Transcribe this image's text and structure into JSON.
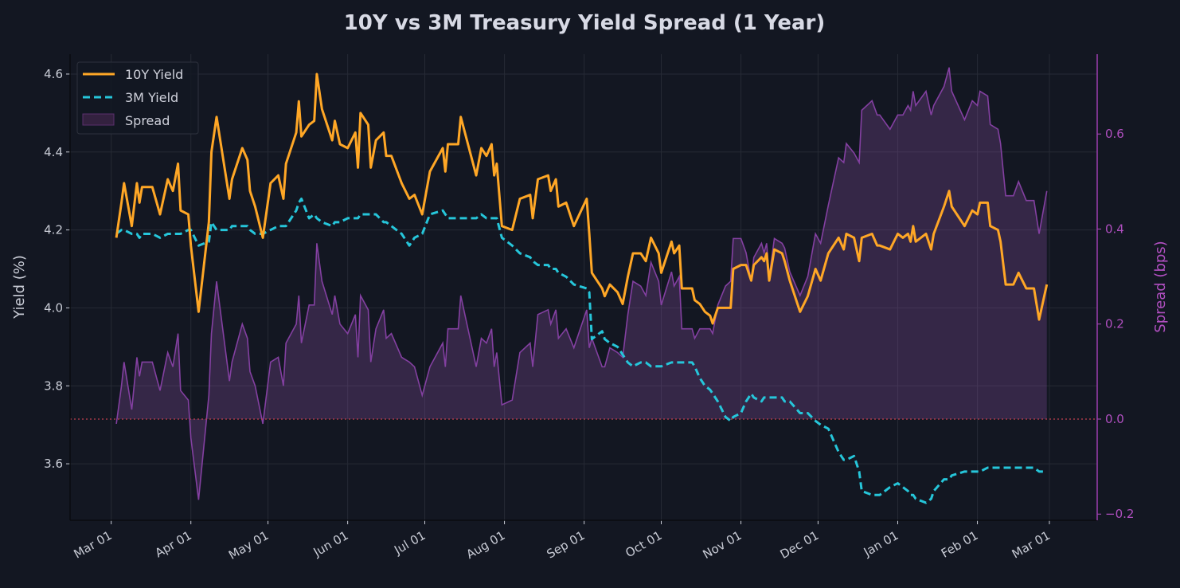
{
  "chart_data": {
    "type": "line",
    "title": "10Y vs 3M Treasury Yield Spread (1 Year)",
    "ylabel": "Yield (%)",
    "ylabel_right": "Spread (bps)",
    "ylim": [
      3.455,
      4.651
    ],
    "ylim_right": [
      -0.213,
      0.768
    ],
    "yticks": [
      "3.6",
      "3.8",
      "4.0",
      "4.2",
      "4.4",
      "4.6"
    ],
    "yticks_right": [
      "−0.2",
      "0.0",
      "0.2",
      "0.4",
      "0.6"
    ],
    "xticks": [
      "Mar 01",
      "Apr 01",
      "May 01",
      "Jun 01",
      "Jul 01",
      "Aug 01",
      "Sep 01",
      "Oct 01",
      "Nov 01",
      "Dec 01",
      "Jan 01",
      "Feb 01",
      "Mar 01"
    ],
    "grid": true,
    "legend_position": "top-left",
    "reference_line": {
      "axis": "right",
      "value": 0.0,
      "style": "dotted",
      "color": "#c0404f"
    },
    "colors": {
      "ten_year": "#ffa726",
      "three_month": "#26c6da",
      "spread": "#9b59b6",
      "background": "#131722"
    },
    "dates": [
      "Mar 03",
      "Mar 05",
      "Mar 06",
      "Mar 09",
      "Mar 11",
      "Mar 12",
      "Mar 13",
      "Mar 17",
      "Mar 20",
      "Mar 23",
      "Mar 25",
      "Mar 27",
      "Mar 28",
      "Mar 31",
      "Apr 01",
      "Apr 04",
      "Apr 08",
      "Apr 09",
      "Apr 11",
      "Apr 16",
      "Apr 17",
      "Apr 21",
      "Apr 23",
      "Apr 24",
      "Apr 26",
      "Apr 29",
      "May 02",
      "May 05",
      "May 07",
      "May 08",
      "May 12",
      "May 13",
      "May 14",
      "May 17",
      "May 19",
      "May 20",
      "May 22",
      "May 26",
      "May 27",
      "May 29",
      "Jun 01",
      "Jun 04",
      "Jun 05",
      "Jun 06",
      "Jun 09",
      "Jun 10",
      "Jun 12",
      "Jun 15",
      "Jun 16",
      "Jun 18",
      "Jun 22",
      "Jun 25",
      "Jun 27",
      "Jun 30",
      "Jul 03",
      "Jul 08",
      "Jul 09",
      "Jul 10",
      "Jul 14",
      "Jul 15",
      "Jul 17",
      "Jul 21",
      "Jul 23",
      "Jul 25",
      "Jul 27",
      "Jul 28",
      "Jul 29",
      "Jul 31",
      "Aug 04",
      "Aug 07",
      "Aug 11",
      "Aug 12",
      "Aug 14",
      "Aug 18",
      "Aug 19",
      "Aug 21",
      "Aug 22",
      "Aug 25",
      "Aug 28",
      "Sep 02",
      "Sep 03",
      "Sep 04",
      "Sep 08",
      "Sep 09",
      "Sep 11",
      "Sep 14",
      "Sep 16",
      "Sep 18",
      "Sep 20",
      "Sep 23",
      "Sep 25",
      "Sep 27",
      "Sep 30",
      "Oct 01",
      "Oct 05",
      "Oct 06",
      "Oct 08",
      "Oct 09",
      "Oct 13",
      "Oct 14",
      "Oct 16",
      "Oct 18",
      "Oct 20",
      "Oct 21",
      "Oct 23",
      "Oct 26",
      "Oct 28",
      "Oct 29",
      "Nov 01",
      "Nov 03",
      "Nov 05",
      "Nov 06",
      "Nov 09",
      "Nov 10",
      "Nov 11",
      "Nov 12",
      "Nov 14",
      "Nov 17",
      "Nov 18",
      "Nov 20",
      "Nov 24",
      "Nov 27",
      "Nov 30",
      "Dec 02",
      "Dec 05",
      "Dec 09",
      "Dec 11",
      "Dec 12",
      "Dec 15",
      "Dec 16",
      "Dec 17",
      "Dec 18",
      "Dec 22",
      "Dec 24",
      "Dec 25",
      "Dec 29",
      "Jan 01",
      "Jan 03",
      "Jan 05",
      "Jan 06",
      "Jan 07",
      "Jan 08",
      "Jan 12",
      "Jan 14",
      "Jan 15",
      "Jan 19",
      "Jan 21",
      "Jan 22",
      "Jan 27",
      "Jan 30",
      "Feb 01",
      "Feb 02",
      "Feb 05",
      "Feb 06",
      "Feb 09",
      "Feb 10",
      "Feb 12",
      "Feb 15",
      "Feb 17",
      "Feb 20",
      "Feb 23",
      "Feb 25",
      "Feb 28"
    ],
    "series": [
      {
        "name": "10Y Yield",
        "axis": "left",
        "style": "solid",
        "values": [
          4.18,
          4.27,
          4.32,
          4.21,
          4.32,
          4.27,
          4.31,
          4.31,
          4.24,
          4.33,
          4.3,
          4.37,
          4.25,
          4.24,
          4.16,
          3.99,
          4.22,
          4.4,
          4.49,
          4.28,
          4.33,
          4.41,
          4.38,
          4.3,
          4.26,
          4.18,
          4.32,
          4.34,
          4.28,
          4.37,
          4.45,
          4.53,
          4.44,
          4.47,
          4.48,
          4.6,
          4.51,
          4.43,
          4.48,
          4.42,
          4.41,
          4.45,
          4.36,
          4.5,
          4.47,
          4.36,
          4.43,
          4.45,
          4.39,
          4.39,
          4.32,
          4.28,
          4.29,
          4.24,
          4.35,
          4.41,
          4.35,
          4.42,
          4.42,
          4.49,
          4.44,
          4.34,
          4.41,
          4.39,
          4.42,
          4.34,
          4.37,
          4.21,
          4.2,
          4.28,
          4.29,
          4.23,
          4.33,
          4.34,
          4.3,
          4.33,
          4.26,
          4.27,
          4.21,
          4.28,
          4.19,
          4.09,
          4.05,
          4.03,
          4.06,
          4.04,
          4.01,
          4.08,
          4.14,
          4.14,
          4.12,
          4.18,
          4.14,
          4.09,
          4.17,
          4.14,
          4.16,
          4.05,
          4.05,
          4.02,
          4.01,
          3.99,
          3.98,
          3.96,
          4.0,
          4.0,
          4.0,
          4.1,
          4.11,
          4.11,
          4.07,
          4.11,
          4.13,
          4.12,
          4.14,
          4.07,
          4.15,
          4.14,
          4.12,
          4.07,
          3.99,
          4.03,
          4.1,
          4.07,
          4.14,
          4.18,
          4.15,
          4.19,
          4.18,
          4.15,
          4.12,
          4.18,
          4.19,
          4.16,
          4.16,
          4.15,
          4.19,
          4.18,
          4.19,
          4.17,
          4.21,
          4.17,
          4.19,
          4.15,
          4.19,
          4.26,
          4.3,
          4.26,
          4.21,
          4.25,
          4.24,
          4.27,
          4.27,
          4.21,
          4.2,
          4.17,
          4.06,
          4.06,
          4.09,
          4.05,
          4.05,
          3.97,
          4.06
        ]
      },
      {
        "name": "3M Yield",
        "axis": "left",
        "style": "dashed",
        "values": [
          4.19,
          4.2,
          4.2,
          4.19,
          4.19,
          4.18,
          4.19,
          4.19,
          4.18,
          4.19,
          4.19,
          4.19,
          4.19,
          4.2,
          4.2,
          4.16,
          4.17,
          4.22,
          4.2,
          4.2,
          4.21,
          4.21,
          4.21,
          4.2,
          4.19,
          4.19,
          4.2,
          4.21,
          4.21,
          4.21,
          4.25,
          4.27,
          4.28,
          4.23,
          4.24,
          4.23,
          4.22,
          4.21,
          4.22,
          4.22,
          4.23,
          4.23,
          4.23,
          4.24,
          4.24,
          4.24,
          4.24,
          4.22,
          4.22,
          4.21,
          4.19,
          4.16,
          4.18,
          4.19,
          4.24,
          4.25,
          4.24,
          4.23,
          4.23,
          4.23,
          4.23,
          4.23,
          4.24,
          4.23,
          4.23,
          4.23,
          4.23,
          4.18,
          4.16,
          4.14,
          4.13,
          4.12,
          4.11,
          4.11,
          4.1,
          4.1,
          4.09,
          4.08,
          4.06,
          4.05,
          4.04,
          3.92,
          3.94,
          3.92,
          3.91,
          3.9,
          3.88,
          3.86,
          3.85,
          3.86,
          3.86,
          3.85,
          3.85,
          3.85,
          3.86,
          3.86,
          3.86,
          3.86,
          3.86,
          3.85,
          3.82,
          3.8,
          3.79,
          3.78,
          3.76,
          3.72,
          3.71,
          3.72,
          3.73,
          3.76,
          3.78,
          3.77,
          3.76,
          3.77,
          3.77,
          3.77,
          3.77,
          3.77,
          3.76,
          3.76,
          3.73,
          3.73,
          3.71,
          3.7,
          3.69,
          3.63,
          3.61,
          3.61,
          3.62,
          3.6,
          3.58,
          3.53,
          3.52,
          3.52,
          3.52,
          3.54,
          3.55,
          3.54,
          3.53,
          3.52,
          3.52,
          3.51,
          3.5,
          3.51,
          3.53,
          3.56,
          3.56,
          3.57,
          3.58,
          3.58,
          3.58,
          3.58,
          3.59,
          3.59,
          3.59,
          3.59,
          3.59,
          3.59,
          3.59,
          3.59,
          3.59,
          3.58,
          3.58
        ]
      },
      {
        "name": "Spread",
        "axis": "right",
        "style": "area",
        "values": [
          -0.01,
          0.07,
          0.12,
          0.02,
          0.13,
          0.09,
          0.12,
          0.12,
          0.06,
          0.14,
          0.11,
          0.18,
          0.06,
          0.04,
          -0.04,
          -0.17,
          0.05,
          0.18,
          0.29,
          0.08,
          0.12,
          0.2,
          0.17,
          0.1,
          0.07,
          -0.01,
          0.12,
          0.13,
          0.07,
          0.16,
          0.2,
          0.26,
          0.16,
          0.24,
          0.24,
          0.37,
          0.29,
          0.22,
          0.26,
          0.2,
          0.18,
          0.22,
          0.13,
          0.26,
          0.23,
          0.12,
          0.19,
          0.23,
          0.17,
          0.18,
          0.13,
          0.12,
          0.11,
          0.05,
          0.11,
          0.16,
          0.11,
          0.19,
          0.19,
          0.26,
          0.21,
          0.11,
          0.17,
          0.16,
          0.19,
          0.11,
          0.14,
          0.03,
          0.04,
          0.14,
          0.16,
          0.11,
          0.22,
          0.23,
          0.2,
          0.23,
          0.17,
          0.19,
          0.15,
          0.23,
          0.15,
          0.17,
          0.11,
          0.11,
          0.15,
          0.14,
          0.13,
          0.22,
          0.29,
          0.28,
          0.26,
          0.33,
          0.29,
          0.24,
          0.31,
          0.28,
          0.3,
          0.19,
          0.19,
          0.17,
          0.19,
          0.19,
          0.19,
          0.18,
          0.24,
          0.28,
          0.29,
          0.38,
          0.38,
          0.35,
          0.29,
          0.34,
          0.37,
          0.35,
          0.37,
          0.3,
          0.38,
          0.37,
          0.36,
          0.31,
          0.26,
          0.3,
          0.39,
          0.37,
          0.45,
          0.55,
          0.54,
          0.58,
          0.56,
          0.55,
          0.54,
          0.65,
          0.67,
          0.64,
          0.64,
          0.61,
          0.64,
          0.64,
          0.66,
          0.65,
          0.69,
          0.66,
          0.69,
          0.64,
          0.66,
          0.7,
          0.74,
          0.69,
          0.63,
          0.67,
          0.66,
          0.69,
          0.68,
          0.62,
          0.61,
          0.58,
          0.47,
          0.47,
          0.5,
          0.46,
          0.46,
          0.39,
          0.48
        ]
      }
    ]
  }
}
